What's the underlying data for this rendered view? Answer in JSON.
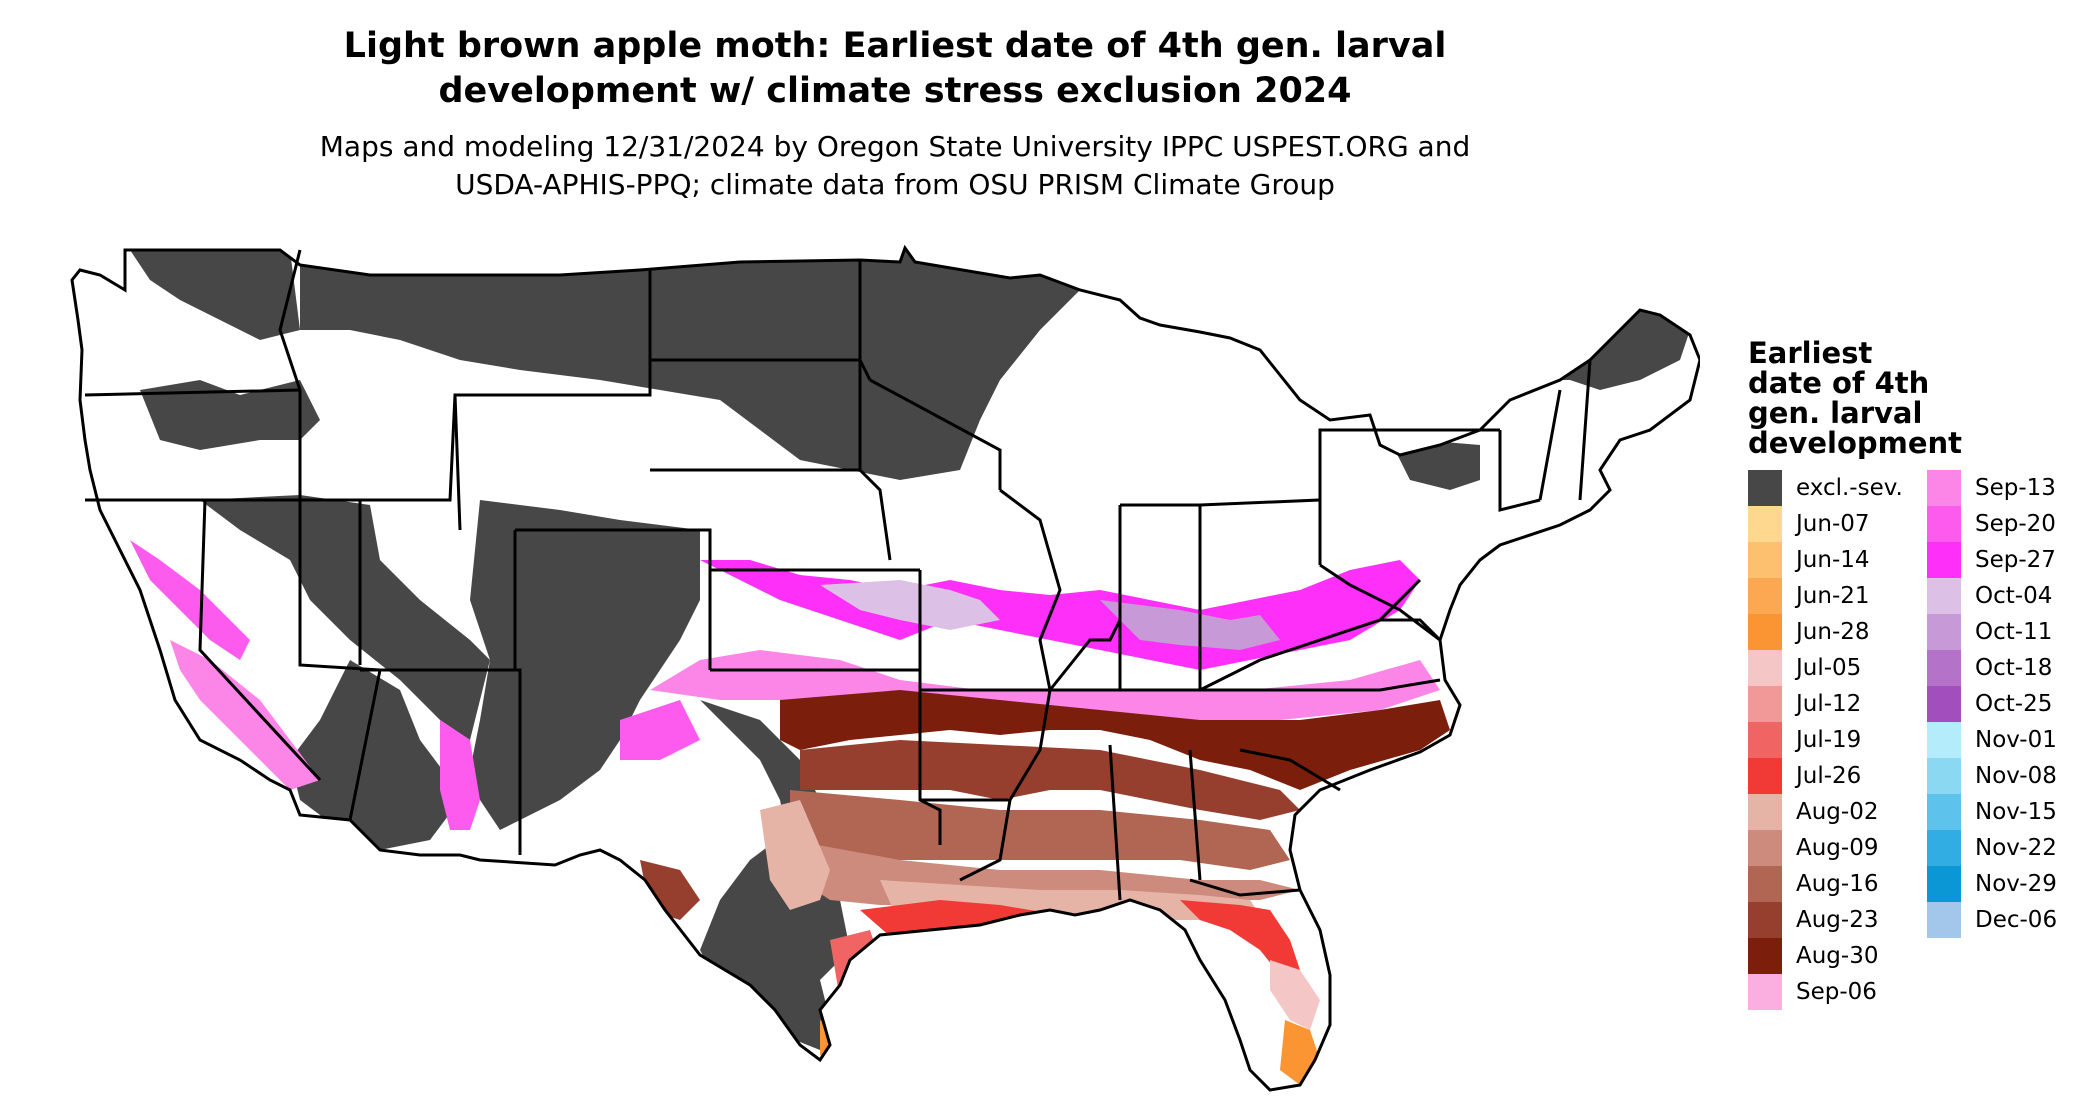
{
  "title_lines": [
    "Light brown apple moth: Earliest date of 4th gen. larval",
    "development w/ climate stress exclusion 2024"
  ],
  "subtitle_lines": [
    "Maps and modeling 12/31/2024 by Oregon State University IPPC USPEST.ORG and",
    "USDA-APHIS-PPQ; climate data from OSU PRISM Climate Group"
  ],
  "legend": {
    "title_lines": [
      "Earliest",
      "date of 4th",
      "gen. larval",
      "development"
    ],
    "col1": [
      {
        "label": "excl.-sev.",
        "color": "#474747"
      },
      {
        "label": "Jun-07",
        "color": "#fdd88e"
      },
      {
        "label": "Jun-14",
        "color": "#fdc06f"
      },
      {
        "label": "Jun-21",
        "color": "#fca853"
      },
      {
        "label": "Jun-28",
        "color": "#fb9433"
      },
      {
        "label": "Jul-05",
        "color": "#f4c6c6"
      },
      {
        "label": "Jul-12",
        "color": "#f19898"
      },
      {
        "label": "Jul-19",
        "color": "#f06563"
      },
      {
        "label": "Jul-26",
        "color": "#f13a35"
      },
      {
        "label": "Aug-02",
        "color": "#e6b4a6"
      },
      {
        "label": "Aug-09",
        "color": "#cc8b7c"
      },
      {
        "label": "Aug-16",
        "color": "#b16553"
      },
      {
        "label": "Aug-23",
        "color": "#963f2e"
      },
      {
        "label": "Aug-30",
        "color": "#7b1f0c"
      },
      {
        "label": "Sep-06",
        "color": "#fbaee0"
      }
    ],
    "col2": [
      {
        "label": "Sep-13",
        "color": "#fb86e8"
      },
      {
        "label": "Sep-20",
        "color": "#fc5bee"
      },
      {
        "label": "Sep-27",
        "color": "#fe2ff8"
      },
      {
        "label": "Oct-04",
        "color": "#dcc0e5"
      },
      {
        "label": "Oct-11",
        "color": "#c799d6"
      },
      {
        "label": "Oct-18",
        "color": "#b472c9"
      },
      {
        "label": "Oct-25",
        "color": "#a34ebd"
      },
      {
        "label": "Nov-01",
        "color": "#b5ecfb"
      },
      {
        "label": "Nov-08",
        "color": "#8bd8f2"
      },
      {
        "label": "Nov-15",
        "color": "#5ec3ec"
      },
      {
        "label": "Nov-22",
        "color": "#31ade4"
      },
      {
        "label": "Nov-29",
        "color": "#0b96d6"
      },
      {
        "label": "Dec-06",
        "color": "#a3c7ea"
      }
    ]
  },
  "colors": {
    "excluded": "#474747",
    "no_development": "#ffffff",
    "state_border": "#000000"
  }
}
